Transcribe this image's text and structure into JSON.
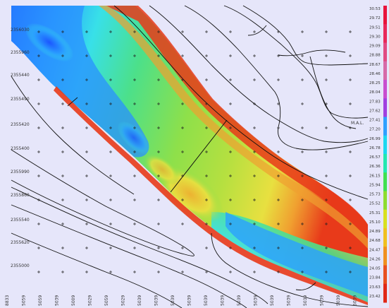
{
  "map": {
    "background_color": "#e6e6fa",
    "contour_color": "#111111",
    "grid_marker_color": "#222222",
    "terrain_colors": [
      "#1a3cff",
      "#2aa0ff",
      "#38e0e8",
      "#4ce08a",
      "#8ee04a",
      "#e8e040",
      "#f0a030",
      "#e83a1a"
    ],
    "y_labels": [
      "2356030",
      "2355960",
      "2355440",
      "2355490",
      "2355420",
      "2355400",
      "2355990",
      "2355860",
      "2355540",
      "2355620",
      "2355000"
    ],
    "x_labels": [
      "8833",
      "5059",
      "5059",
      "5039",
      "5009",
      "5029",
      "5059",
      "5029",
      "5039",
      "5039",
      "5039",
      "5039",
      "5039",
      "5039",
      "5039",
      "5039",
      "5039",
      "5039",
      "5039",
      "5039",
      "5039",
      "5039",
      "5039"
    ],
    "callout_text": "M.A.L.",
    "legend": {
      "colors": [
        "#e8143c",
        "#e8285a",
        "#e04a82",
        "#d66aa8",
        "#c84ed0",
        "#a040e0",
        "#2ea0ff",
        "#1cd8f0",
        "#22e8b0",
        "#40e050",
        "#8edc30",
        "#d8e020",
        "#f0c020",
        "#f09020",
        "#e85020",
        "#e02818"
      ],
      "labels": [
        "30.53",
        "29.72",
        "29.51",
        "29.30",
        "29.09",
        "28.88",
        "28.67",
        "28.46",
        "28.25",
        "28.04",
        "27.83",
        "27.62",
        "27.41",
        "27.20",
        "26.99",
        "26.78",
        "26.57",
        "26.36",
        "26.15",
        "25.94",
        "25.73",
        "25.52",
        "25.31",
        "25.10",
        "24.89",
        "24.68",
        "24.47",
        "24.26",
        "24.05",
        "23.84",
        "23.63",
        "23.42"
      ]
    }
  }
}
